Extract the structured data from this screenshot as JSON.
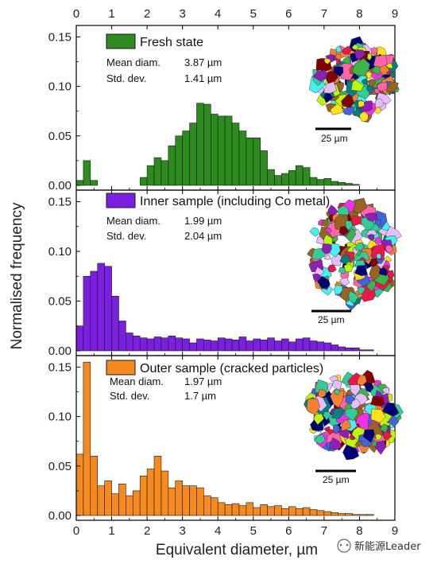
{
  "figure": {
    "xlabel": "Equivalent diameter, µm",
    "ylabel": "Normalised frequency",
    "watermark": "新能源Leader"
  },
  "chart_data": [
    {
      "type": "bar",
      "legend": "Fresh state",
      "color": "#2e8b1f",
      "stats": {
        "mean_label": "Mean diam.",
        "mean_value": "3.87 µm",
        "std_label": "Std. dev.",
        "std_value": "1.41 µm"
      },
      "scale_bar": "25 µm",
      "bin_width": 0.2,
      "x": [
        0.1,
        0.3,
        0.5,
        0.7,
        0.9,
        1.1,
        1.3,
        1.5,
        1.7,
        1.9,
        2.1,
        2.3,
        2.5,
        2.7,
        2.9,
        3.1,
        3.3,
        3.5,
        3.7,
        3.9,
        4.1,
        4.3,
        4.5,
        4.7,
        4.9,
        5.1,
        5.3,
        5.5,
        5.7,
        5.9,
        6.1,
        6.3,
        6.5,
        6.7,
        6.9,
        7.1,
        7.3,
        7.5,
        7.7,
        7.9
      ],
      "values": [
        0.005,
        0.025,
        0.005,
        0,
        0,
        0,
        0,
        0,
        0,
        0.008,
        0.02,
        0.028,
        0.025,
        0.04,
        0.05,
        0.055,
        0.063,
        0.083,
        0.082,
        0.072,
        0.07,
        0.07,
        0.063,
        0.055,
        0.048,
        0.048,
        0.035,
        0.016,
        0.01,
        0.012,
        0.015,
        0.02,
        0.018,
        0.008,
        0.006,
        0.007,
        0.004,
        0.003,
        0.002,
        0.001
      ],
      "xlim": [
        0,
        9
      ],
      "ylim": [
        0,
        0.16
      ],
      "yticks": [
        "0.00",
        "0.05",
        "0.10",
        "0.15"
      ],
      "xticks_top": [
        "0",
        "1",
        "2",
        "3",
        "4",
        "5",
        "6",
        "7",
        "8",
        "9"
      ]
    },
    {
      "type": "bar",
      "legend": "Inner sample (including Co metal)",
      "color": "#7b1fe0",
      "stats": {
        "mean_label": "Mean diam.",
        "mean_value": "1.99 µm",
        "std_label": "Std. dev.",
        "std_value": "2.04 µm"
      },
      "scale_bar": "25 µm",
      "bin_width": 0.2,
      "x": [
        0.1,
        0.3,
        0.5,
        0.7,
        0.9,
        1.1,
        1.3,
        1.5,
        1.7,
        1.9,
        2.1,
        2.3,
        2.5,
        2.7,
        2.9,
        3.1,
        3.3,
        3.5,
        3.7,
        3.9,
        4.1,
        4.3,
        4.5,
        4.7,
        4.9,
        5.1,
        5.3,
        5.5,
        5.7,
        5.9,
        6.1,
        6.3,
        6.5,
        6.7,
        6.9,
        7.1,
        7.3,
        7.5,
        7.7,
        7.9,
        8.1,
        8.3,
        8.5,
        8.7,
        8.9
      ],
      "values": [
        0.025,
        0.075,
        0.08,
        0.088,
        0.085,
        0.055,
        0.03,
        0.018,
        0.015,
        0.013,
        0.012,
        0.014,
        0.013,
        0.015,
        0.013,
        0.012,
        0.008,
        0.012,
        0.011,
        0.01,
        0.013,
        0.012,
        0.011,
        0.014,
        0.01,
        0.012,
        0.011,
        0.013,
        0.01,
        0.012,
        0.009,
        0.012,
        0.013,
        0.01,
        0.009,
        0.008,
        0.006,
        0.004,
        0.003,
        0.003,
        0.001,
        0.001,
        0,
        0,
        0
      ],
      "xlim": [
        0,
        9
      ],
      "ylim": [
        0,
        0.16
      ],
      "yticks": [
        "0.00",
        "0.05",
        "0.10",
        "0.15"
      ]
    },
    {
      "type": "bar",
      "legend": "Outer sample (cracked particles)",
      "color": "#f58a1f",
      "stats": {
        "mean_label": "Mean diam.",
        "mean_value": "1.97 µm",
        "std_label": "Std. dev.",
        "std_value": "1.7 µm"
      },
      "scale_bar": "25 µm",
      "bin_width": 0.2,
      "x": [
        0.1,
        0.3,
        0.5,
        0.7,
        0.9,
        1.1,
        1.3,
        1.5,
        1.7,
        1.9,
        2.1,
        2.3,
        2.5,
        2.7,
        2.9,
        3.1,
        3.3,
        3.5,
        3.7,
        3.9,
        4.1,
        4.3,
        4.5,
        4.7,
        4.9,
        5.1,
        5.3,
        5.5,
        5.7,
        5.9,
        6.1,
        6.3,
        6.5,
        6.7,
        6.9,
        7.1,
        7.3,
        7.5,
        7.7,
        7.9,
        8.1,
        8.3,
        8.5,
        8.7,
        8.9
      ],
      "values": [
        0.062,
        0.155,
        0.06,
        0.03,
        0.035,
        0.022,
        0.032,
        0.02,
        0.025,
        0.04,
        0.047,
        0.06,
        0.045,
        0.028,
        0.035,
        0.03,
        0.03,
        0.028,
        0.02,
        0.018,
        0.013,
        0.011,
        0.012,
        0.01,
        0.013,
        0.008,
        0.011,
        0.009,
        0.01,
        0.007,
        0.009,
        0.007,
        0.008,
        0.006,
        0.005,
        0.004,
        0.003,
        0.002,
        0.002,
        0.001,
        0.001,
        0.001,
        0,
        0,
        0
      ],
      "xlim": [
        0,
        9
      ],
      "ylim": [
        0,
        0.16
      ],
      "yticks": [
        "0.00",
        "0.05",
        "0.10",
        "0.15"
      ],
      "xticks_bottom": [
        "0",
        "1",
        "2",
        "3",
        "4",
        "5",
        "6",
        "7",
        "8",
        "9"
      ]
    }
  ]
}
